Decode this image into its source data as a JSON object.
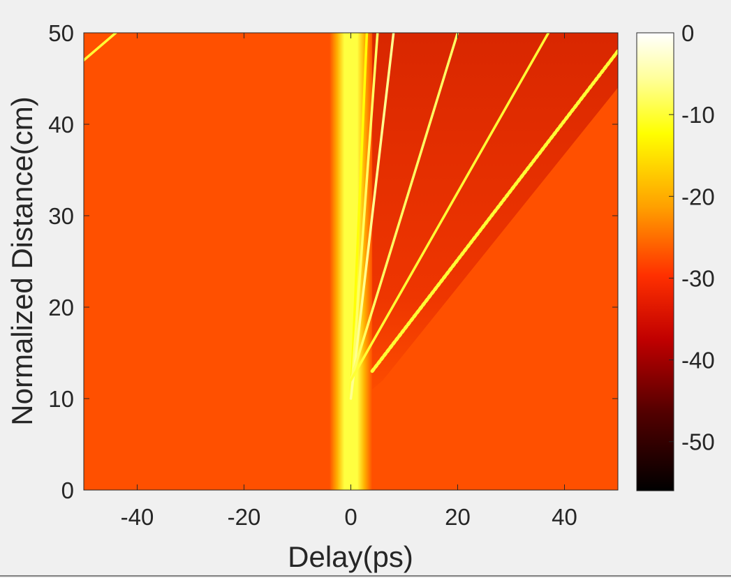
{
  "chart_data": {
    "type": "heatmap",
    "title": "",
    "xlabel": "Delay(ps)",
    "ylabel": "Normalized Distance(cm)",
    "xlim": [
      -50,
      50
    ],
    "ylim": [
      0,
      50
    ],
    "x_ticks": [
      -40,
      -20,
      0,
      20,
      40
    ],
    "y_ticks": [
      0,
      10,
      20,
      30,
      40,
      50
    ],
    "grid": false,
    "colormap": "hot",
    "colorbar": {
      "range": [
        -56,
        0
      ],
      "ticks": [
        0,
        -10,
        -20,
        -30,
        -40,
        -50
      ],
      "background_level": -27,
      "colors": {
        "low": "#000000",
        "dark_red": "#8c0000",
        "red": "#e11b00",
        "orange": "#ff5000",
        "amber": "#ffa000",
        "yellow": "#ffff00",
        "high": "#ffffff"
      }
    },
    "background_color": "#ff5000",
    "pulse_center": {
      "center_delay": 0,
      "half_width": 2,
      "distance_range": [
        0,
        12
      ],
      "color": "#ffff40"
    },
    "traces": [
      {
        "start": [
          0,
          10
        ],
        "end": [
          3,
          50
        ],
        "level": -12
      },
      {
        "start": [
          0,
          10
        ],
        "end": [
          5,
          50
        ],
        "level": -8
      },
      {
        "start": [
          0,
          10
        ],
        "end": [
          8,
          50
        ],
        "level": -6
      },
      {
        "start": [
          0,
          12
        ],
        "end": [
          20,
          50
        ],
        "level": -8
      },
      {
        "start": [
          0,
          12
        ],
        "end": [
          37,
          50
        ],
        "level": -10
      },
      {
        "start": [
          4,
          13
        ],
        "end": [
          50,
          48
        ],
        "level": -10
      },
      {
        "start": [
          -50,
          47
        ],
        "end": [
          -44,
          50
        ],
        "level": -10
      }
    ]
  }
}
